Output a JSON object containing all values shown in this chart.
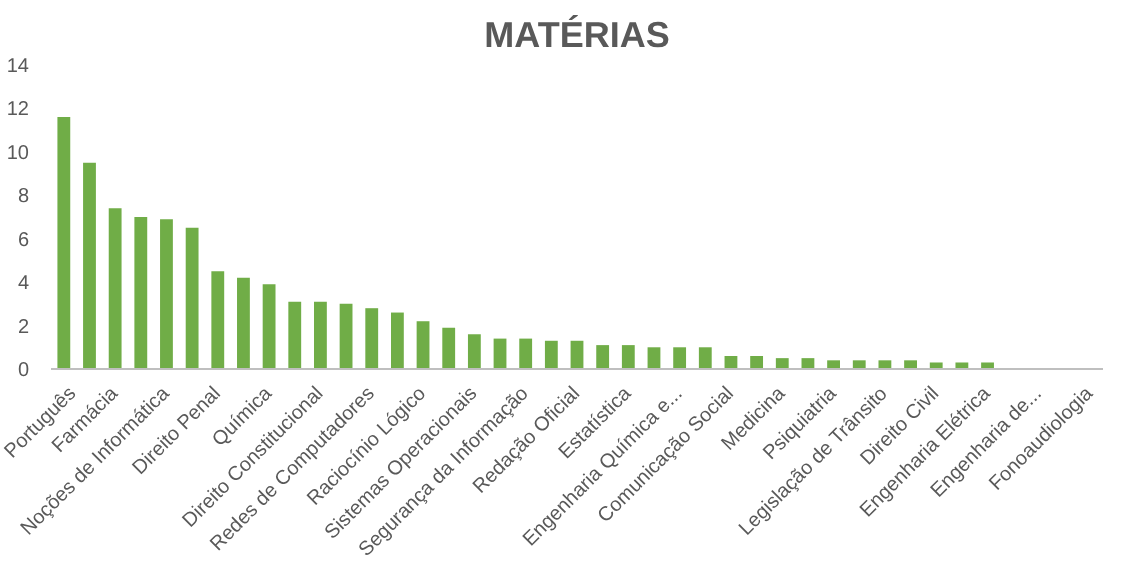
{
  "chart_data": {
    "type": "bar",
    "title": "MATÉRIAS",
    "categories": [
      "Português",
      null,
      "Farmácia",
      null,
      "Noções de Informática",
      null,
      "Direito Penal",
      null,
      "Química",
      null,
      "Direito Constitucional",
      null,
      "Redes de Computadores",
      null,
      "Raciocínio Lógico",
      null,
      "Sistemas Operacionais",
      null,
      "Segurança da Informação",
      null,
      "Redação Oficial",
      null,
      "Estatística",
      null,
      "Engenharia Química e...",
      null,
      "Comunicação Social",
      null,
      "Medicina",
      null,
      "Psiquiatria",
      null,
      "Legislação de Trânsito",
      null,
      "Direito Civil",
      null,
      "Engenharia Elétrica",
      null,
      "Engenharia de...",
      null,
      "Fonoaudiologia"
    ],
    "values": [
      11.6,
      9.5,
      7.4,
      7.0,
      6.9,
      6.5,
      4.5,
      4.2,
      3.9,
      3.1,
      3.1,
      3.0,
      2.8,
      2.6,
      2.2,
      1.9,
      1.6,
      1.4,
      1.4,
      1.3,
      1.3,
      1.1,
      1.1,
      1.0,
      1.0,
      1.0,
      0.6,
      0.6,
      0.5,
      0.5,
      0.4,
      0.4,
      0.4,
      0.4,
      0.3,
      0.3,
      0.3,
      0,
      0,
      0,
      0
    ],
    "color": "#70ad47",
    "ylim": [
      0,
      14
    ],
    "yticks": [
      0,
      2,
      4,
      6,
      8,
      10,
      12,
      14
    ],
    "grid": false
  }
}
